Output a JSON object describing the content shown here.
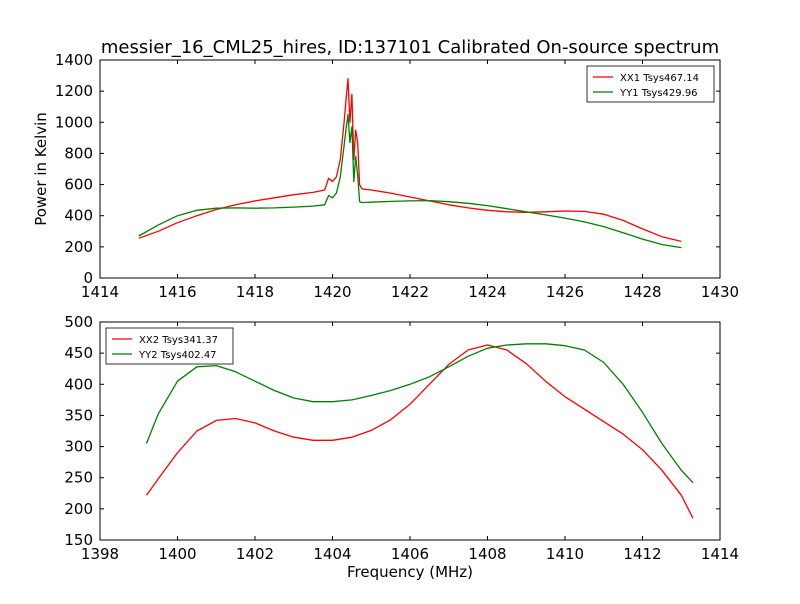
{
  "title": "messier_16_CML25_hires, ID:137101 Calibrated On-source spectrum",
  "colors": {
    "series_1": "#ff0000",
    "series_2": "#008000",
    "axes": "#000000",
    "background": "#ffffff"
  },
  "chart_data": [
    {
      "type": "line",
      "xlabel": "",
      "ylabel": "Power in Kelvin",
      "xlim": [
        1414,
        1430
      ],
      "ylim": [
        0,
        1400
      ],
      "xticks": [
        1414,
        1416,
        1418,
        1420,
        1422,
        1424,
        1426,
        1428,
        1430
      ],
      "yticks": [
        0,
        200,
        400,
        600,
        800,
        1000,
        1200,
        1400
      ],
      "grid": false,
      "legend_position": "top-right",
      "series": [
        {
          "name": "XX1 Tsys467.14",
          "x": [
            1415.0,
            1415.5,
            1416.0,
            1416.5,
            1417.0,
            1417.5,
            1418.0,
            1418.5,
            1419.0,
            1419.5,
            1419.8,
            1419.9,
            1420.0,
            1420.1,
            1420.2,
            1420.3,
            1420.35,
            1420.4,
            1420.45,
            1420.5,
            1420.55,
            1420.6,
            1420.65,
            1420.7,
            1420.75,
            1420.8,
            1421.0,
            1421.5,
            1422.0,
            1422.5,
            1423.0,
            1423.5,
            1424.0,
            1424.5,
            1425.0,
            1425.5,
            1426.0,
            1426.5,
            1427.0,
            1427.5,
            1428.0,
            1428.5,
            1429.0
          ],
          "values": [
            255,
            300,
            355,
            400,
            440,
            470,
            495,
            515,
            535,
            550,
            565,
            640,
            620,
            650,
            760,
            1000,
            1150,
            1280,
            1000,
            1180,
            760,
            950,
            870,
            600,
            575,
            570,
            565,
            545,
            520,
            495,
            470,
            450,
            435,
            425,
            422,
            425,
            430,
            428,
            410,
            370,
            315,
            265,
            235
          ]
        },
        {
          "name": "YY1 Tsys429.96",
          "x": [
            1415.0,
            1415.5,
            1416.0,
            1416.5,
            1417.0,
            1417.5,
            1418.0,
            1418.5,
            1419.0,
            1419.5,
            1419.8,
            1419.9,
            1420.0,
            1420.1,
            1420.2,
            1420.3,
            1420.35,
            1420.4,
            1420.45,
            1420.5,
            1420.55,
            1420.6,
            1420.65,
            1420.7,
            1420.75,
            1420.8,
            1421.0,
            1421.5,
            1422.0,
            1422.5,
            1423.0,
            1423.5,
            1424.0,
            1424.5,
            1425.0,
            1425.5,
            1426.0,
            1426.5,
            1427.0,
            1427.5,
            1428.0,
            1428.5,
            1429.0
          ],
          "values": [
            270,
            340,
            400,
            435,
            448,
            450,
            448,
            450,
            455,
            462,
            470,
            530,
            515,
            545,
            650,
            850,
            960,
            1050,
            870,
            970,
            620,
            780,
            660,
            490,
            485,
            485,
            487,
            492,
            495,
            497,
            490,
            480,
            465,
            445,
            425,
            405,
            385,
            360,
            330,
            290,
            250,
            215,
            195
          ]
        }
      ]
    },
    {
      "type": "line",
      "xlabel": "Frequency (MHz)",
      "ylabel": "",
      "xlim": [
        1398,
        1414
      ],
      "ylim": [
        150,
        500
      ],
      "xticks": [
        1398,
        1400,
        1402,
        1404,
        1406,
        1408,
        1410,
        1412,
        1414
      ],
      "yticks": [
        150,
        200,
        250,
        300,
        350,
        400,
        450,
        500
      ],
      "grid": false,
      "legend_position": "top-left",
      "series": [
        {
          "name": "XX2 Tsys341.37",
          "x": [
            1399.2,
            1399.5,
            1400.0,
            1400.5,
            1401.0,
            1401.5,
            1402.0,
            1402.5,
            1403.0,
            1403.5,
            1404.0,
            1404.5,
            1405.0,
            1405.5,
            1406.0,
            1406.5,
            1407.0,
            1407.5,
            1408.0,
            1408.5,
            1409.0,
            1409.5,
            1410.0,
            1410.5,
            1411.0,
            1411.5,
            1412.0,
            1412.5,
            1413.0,
            1413.3
          ],
          "values": [
            222,
            248,
            290,
            325,
            342,
            345,
            338,
            325,
            315,
            310,
            310,
            315,
            326,
            343,
            368,
            400,
            432,
            455,
            463,
            455,
            433,
            405,
            380,
            360,
            340,
            320,
            295,
            262,
            222,
            185
          ]
        },
        {
          "name": "YY2 Tsys402.47",
          "x": [
            1399.2,
            1399.5,
            1400.0,
            1400.5,
            1401.0,
            1401.5,
            1402.0,
            1402.5,
            1403.0,
            1403.5,
            1404.0,
            1404.5,
            1405.0,
            1405.5,
            1406.0,
            1406.5,
            1407.0,
            1407.5,
            1408.0,
            1408.5,
            1409.0,
            1409.5,
            1410.0,
            1410.5,
            1411.0,
            1411.5,
            1412.0,
            1412.5,
            1413.0,
            1413.3
          ],
          "values": [
            305,
            352,
            405,
            428,
            430,
            420,
            405,
            390,
            378,
            372,
            372,
            375,
            382,
            390,
            400,
            412,
            428,
            445,
            458,
            463,
            465,
            465,
            462,
            455,
            435,
            400,
            355,
            305,
            262,
            242
          ]
        }
      ]
    }
  ]
}
